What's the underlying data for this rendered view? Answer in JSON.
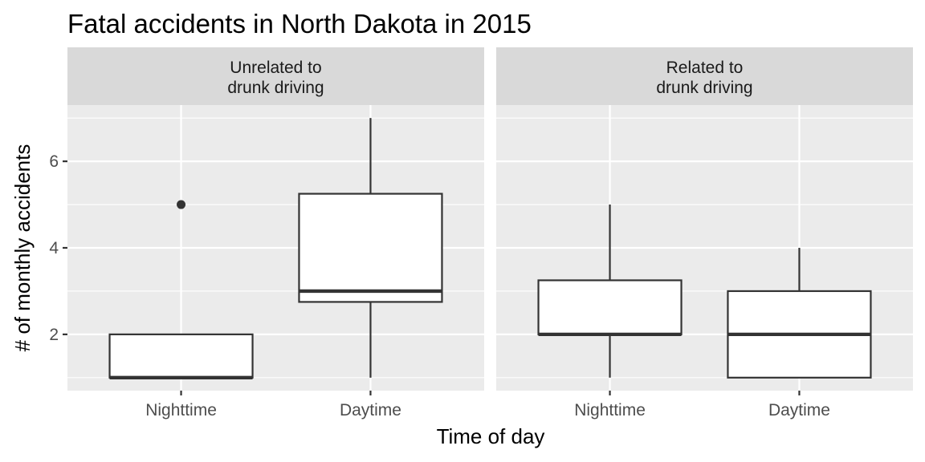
{
  "chart_data": {
    "type": "boxplot",
    "title": "Fatal accidents in North Dakota in 2015",
    "xlabel": "Time of day",
    "ylabel": "# of monthly accidents",
    "categories": [
      "Nighttime",
      "Daytime"
    ],
    "ylim": [
      0.7,
      7.3
    ],
    "yticks": [
      2,
      4,
      6
    ],
    "ytick_labels": [
      "2",
      "4",
      "6"
    ],
    "grid": true,
    "panels": [
      {
        "strip_lines": [
          "Unrelated to",
          "drunk driving"
        ],
        "boxes": [
          {
            "category": "Nighttime",
            "min": 1,
            "q1": 1,
            "median": 1,
            "q3": 2,
            "max": 2,
            "outliers": [
              5
            ]
          },
          {
            "category": "Daytime",
            "min": 1,
            "q1": 2.75,
            "median": 3,
            "q3": 5.25,
            "max": 7,
            "outliers": []
          }
        ]
      },
      {
        "strip_lines": [
          "Related to",
          "drunk driving"
        ],
        "boxes": [
          {
            "category": "Nighttime",
            "min": 1,
            "q1": 2,
            "median": 2,
            "q3": 3.25,
            "max": 5,
            "outliers": []
          },
          {
            "category": "Daytime",
            "min": 1,
            "q1": 1,
            "median": 2,
            "q3": 3,
            "max": 4,
            "outliers": []
          }
        ]
      }
    ],
    "colors": {
      "panel_bg": "#ebebeb",
      "strip_bg": "#d9d9d9",
      "grid": "#ffffff",
      "box_fill": "#ffffff",
      "box_line": "#333333"
    }
  }
}
